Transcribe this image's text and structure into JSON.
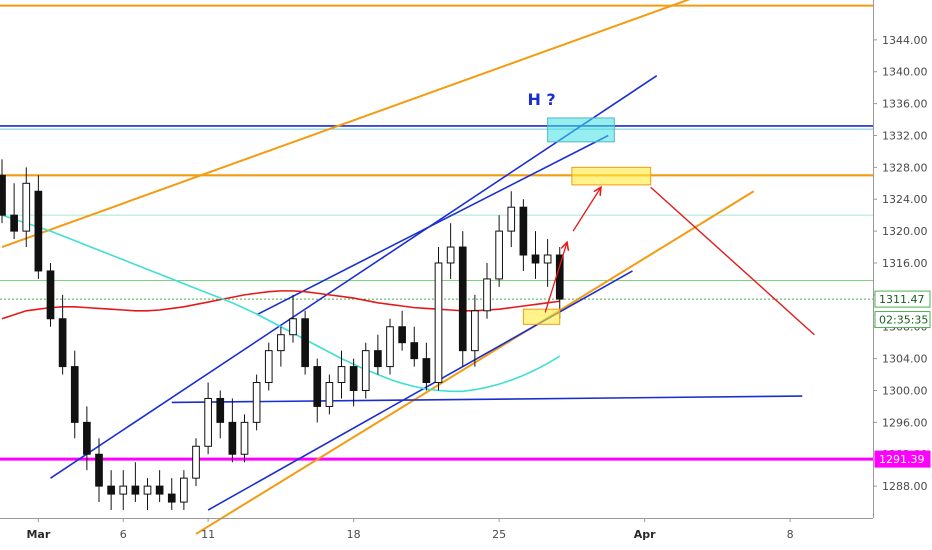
{
  "chart_data": {
    "type": "candlestick",
    "title": "",
    "xlabel": "",
    "ylabel": "",
    "ylim": [
      1284,
      1349
    ],
    "x_ticks": [
      {
        "label": "Mar",
        "bold": true,
        "bar": 3
      },
      {
        "label": "6",
        "bold": false,
        "bar": 10
      },
      {
        "label": "11",
        "bold": false,
        "bar": 17
      },
      {
        "label": "18",
        "bold": false,
        "bar": 29
      },
      {
        "label": "25",
        "bold": false,
        "bar": 41
      },
      {
        "label": "Apr",
        "bold": true,
        "bar": 53
      },
      {
        "label": "8",
        "bold": false,
        "bar": 65
      }
    ],
    "y_ticks": [
      1288.0,
      1292.0,
      1296.0,
      1300.0,
      1304.0,
      1308.0,
      1312.0,
      1316.0,
      1320.0,
      1324.0,
      1328.0,
      1332.0,
      1336.0,
      1340.0,
      1344.0
    ],
    "y_tick_labels": [
      "1288.00",
      "1292.00",
      "1296.00",
      "1300.00",
      "1304.00",
      "1308.00",
      "1312.00",
      "1316.00",
      "1320.00",
      "1324.00",
      "1328.00",
      "1332.00",
      "1336.00",
      "1340.00",
      "1344.00"
    ],
    "x_range_bars": [
      0,
      72
    ],
    "price_badges": [
      {
        "label": "1311.47",
        "value": 1311.47,
        "style": "green"
      },
      {
        "label": "02:35:35",
        "value": 1308.9,
        "style": "green"
      },
      {
        "label": "1291.39",
        "value": 1291.39,
        "style": "magenta"
      }
    ],
    "annotation": {
      "text": "H ?",
      "bar": 44.5,
      "value": 1335.8
    },
    "candles": [
      {
        "o": 1327,
        "h": 1329,
        "l": 1321,
        "c": 1322
      },
      {
        "o": 1322,
        "h": 1326,
        "l": 1319,
        "c": 1320
      },
      {
        "o": 1320,
        "h": 1328,
        "l": 1318,
        "c": 1326
      },
      {
        "o": 1325,
        "h": 1327,
        "l": 1314,
        "c": 1315
      },
      {
        "o": 1315,
        "h": 1316,
        "l": 1308,
        "c": 1309
      },
      {
        "o": 1309,
        "h": 1312,
        "l": 1302,
        "c": 1303
      },
      {
        "o": 1303,
        "h": 1305,
        "l": 1294,
        "c": 1296
      },
      {
        "o": 1296,
        "h": 1298,
        "l": 1290,
        "c": 1292
      },
      {
        "o": 1292,
        "h": 1294,
        "l": 1286,
        "c": 1288
      },
      {
        "o": 1288,
        "h": 1290,
        "l": 1285,
        "c": 1287
      },
      {
        "o": 1287,
        "h": 1290,
        "l": 1285,
        "c": 1288
      },
      {
        "o": 1288,
        "h": 1291,
        "l": 1286,
        "c": 1287
      },
      {
        "o": 1287,
        "h": 1289,
        "l": 1285,
        "c": 1288
      },
      {
        "o": 1288,
        "h": 1290,
        "l": 1286,
        "c": 1287
      },
      {
        "o": 1287,
        "h": 1289,
        "l": 1285,
        "c": 1286
      },
      {
        "o": 1286,
        "h": 1290,
        "l": 1285,
        "c": 1289
      },
      {
        "o": 1289,
        "h": 1294,
        "l": 1288,
        "c": 1293
      },
      {
        "o": 1293,
        "h": 1301,
        "l": 1292,
        "c": 1299
      },
      {
        "o": 1299,
        "h": 1300,
        "l": 1294,
        "c": 1296
      },
      {
        "o": 1296,
        "h": 1299,
        "l": 1291,
        "c": 1292
      },
      {
        "o": 1292,
        "h": 1297,
        "l": 1291,
        "c": 1296
      },
      {
        "o": 1296,
        "h": 1302,
        "l": 1295,
        "c": 1301
      },
      {
        "o": 1301,
        "h": 1306,
        "l": 1300,
        "c": 1305
      },
      {
        "o": 1305,
        "h": 1308,
        "l": 1303,
        "c": 1307
      },
      {
        "o": 1307,
        "h": 1312,
        "l": 1306,
        "c": 1309
      },
      {
        "o": 1309,
        "h": 1310,
        "l": 1302,
        "c": 1303
      },
      {
        "o": 1303,
        "h": 1304,
        "l": 1296,
        "c": 1298
      },
      {
        "o": 1298,
        "h": 1302,
        "l": 1297,
        "c": 1301
      },
      {
        "o": 1301,
        "h": 1305,
        "l": 1299,
        "c": 1303
      },
      {
        "o": 1303,
        "h": 1304,
        "l": 1298,
        "c": 1300
      },
      {
        "o": 1300,
        "h": 1306,
        "l": 1299,
        "c": 1305
      },
      {
        "o": 1305,
        "h": 1307,
        "l": 1302,
        "c": 1303
      },
      {
        "o": 1303,
        "h": 1309,
        "l": 1302,
        "c": 1308
      },
      {
        "o": 1308,
        "h": 1310,
        "l": 1305,
        "c": 1306
      },
      {
        "o": 1306,
        "h": 1308,
        "l": 1303,
        "c": 1304
      },
      {
        "o": 1304,
        "h": 1306,
        "l": 1300,
        "c": 1301
      },
      {
        "o": 1301,
        "h": 1318,
        "l": 1300,
        "c": 1316
      },
      {
        "o": 1316,
        "h": 1321,
        "l": 1314,
        "c": 1318
      },
      {
        "o": 1318,
        "h": 1320,
        "l": 1303,
        "c": 1305
      },
      {
        "o": 1305,
        "h": 1312,
        "l": 1303,
        "c": 1310
      },
      {
        "o": 1310,
        "h": 1316,
        "l": 1309,
        "c": 1314
      },
      {
        "o": 1314,
        "h": 1322,
        "l": 1313,
        "c": 1320
      },
      {
        "o": 1320,
        "h": 1325,
        "l": 1318,
        "c": 1323
      },
      {
        "o": 1323,
        "h": 1324,
        "l": 1315,
        "c": 1317
      },
      {
        "o": 1317,
        "h": 1320,
        "l": 1314,
        "c": 1316
      },
      {
        "o": 1316,
        "h": 1319,
        "l": 1313,
        "c": 1317
      },
      {
        "o": 1317,
        "h": 1318,
        "l": 1309,
        "c": 1311.47
      }
    ],
    "series": [
      {
        "name": "",
        "color": "#e31a1c",
        "values": [
          1309,
          1309.5,
          1310,
          1310.2,
          1310.4,
          1310.5,
          1310.5,
          1310.4,
          1310.3,
          1310.2,
          1310.1,
          1310,
          1310,
          1310.1,
          1310.3,
          1310.5,
          1310.8,
          1311.1,
          1311.4,
          1311.7,
          1312,
          1312.2,
          1312.4,
          1312.5,
          1312.5,
          1312.4,
          1312.2,
          1312,
          1311.8,
          1311.6,
          1311.3,
          1311,
          1310.8,
          1310.6,
          1310.4,
          1310.3,
          1310.2,
          1310.1,
          1310,
          1310,
          1310.1,
          1310.2,
          1310.4,
          1310.6,
          1310.8,
          1311,
          1311.2
        ]
      },
      {
        "name": "",
        "color": "#40e0d0",
        "values": [
          1322,
          1321.5,
          1321,
          1320.5,
          1320,
          1319.4,
          1318.8,
          1318.2,
          1317.6,
          1317,
          1316.4,
          1315.8,
          1315.2,
          1314.6,
          1314,
          1313.4,
          1312.8,
          1312.2,
          1311.6,
          1311,
          1310.3,
          1309.6,
          1308.8,
          1308,
          1307.2,
          1306.4,
          1305.6,
          1304.8,
          1304,
          1303.3,
          1302.6,
          1302,
          1301.4,
          1300.9,
          1300.5,
          1300.2,
          1300,
          1299.9,
          1299.9,
          1300.1,
          1300.4,
          1300.8,
          1301.3,
          1301.9,
          1302.6,
          1303.4,
          1304.3
        ]
      }
    ]
  }
}
